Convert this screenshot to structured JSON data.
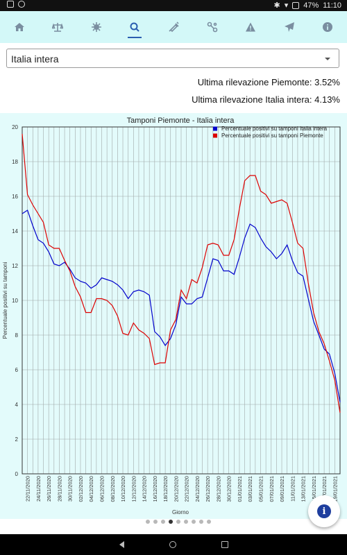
{
  "status_bar": {
    "battery": "47%",
    "time": "11:10"
  },
  "toolbar": {
    "accent": "#2a5db0",
    "icon_color": "#7a8ea0",
    "items": [
      {
        "icon": "home-icon"
      },
      {
        "icon": "balance-scale-icon"
      },
      {
        "icon": "virus-icon"
      },
      {
        "icon": "search-icon",
        "active": true
      },
      {
        "icon": "syringe-icon"
      },
      {
        "icon": "share-icon"
      },
      {
        "icon": "warning-icon"
      },
      {
        "icon": "airplane-icon"
      },
      {
        "icon": "info-icon"
      }
    ]
  },
  "selector": {
    "value": "Italia intera"
  },
  "stats": {
    "piemonte": "Ultima rilevazione Piemonte: 3.52%",
    "italia": "Ultima rilevazione Italia intera: 4.13%"
  },
  "pager": {
    "count": 9,
    "active_index": 3
  },
  "chart_data": {
    "type": "line",
    "title": "Tamponi Piemonte - Italia intera",
    "xlabel": "Giorno",
    "ylabel": "Percentuale positivi su tamponi",
    "ylim": [
      0,
      20
    ],
    "yticks": [
      0,
      2,
      4,
      6,
      8,
      10,
      12,
      14,
      16,
      18,
      20
    ],
    "grid": true,
    "legend_position": "top-right",
    "x_tick_labels": [
      "22/11/2020",
      "24/11/2020",
      "26/11/2020",
      "28/11/2020",
      "30/11/2020",
      "02/12/2020",
      "04/12/2020",
      "06/12/2020",
      "08/12/2020",
      "10/12/2020",
      "12/12/2020",
      "14/12/2020",
      "16/12/2020",
      "18/12/2020",
      "20/12/2020",
      "22/12/2020",
      "24/12/2020",
      "26/12/2020",
      "28/12/2020",
      "30/12/2020",
      "01/01/2021",
      "03/01/2021",
      "05/01/2021",
      "07/01/2021",
      "09/01/2021",
      "11/01/2021",
      "13/01/2021",
      "15/01/2021",
      "17/01/2021",
      "19/01/2021"
    ],
    "x": [
      "21/11/2020",
      "22/11/2020",
      "23/11/2020",
      "24/11/2020",
      "25/11/2020",
      "26/11/2020",
      "27/11/2020",
      "28/11/2020",
      "29/11/2020",
      "30/11/2020",
      "01/12/2020",
      "02/12/2020",
      "03/12/2020",
      "04/12/2020",
      "05/12/2020",
      "06/12/2020",
      "07/12/2020",
      "08/12/2020",
      "09/12/2020",
      "10/12/2020",
      "11/12/2020",
      "12/12/2020",
      "13/12/2020",
      "14/12/2020",
      "15/12/2020",
      "16/12/2020",
      "17/12/2020",
      "18/12/2020",
      "19/12/2020",
      "20/12/2020",
      "21/12/2020",
      "22/12/2020",
      "23/12/2020",
      "24/12/2020",
      "25/12/2020",
      "26/12/2020",
      "27/12/2020",
      "28/12/2020",
      "29/12/2020",
      "30/12/2020",
      "31/12/2020",
      "01/01/2021",
      "02/01/2021",
      "03/01/2021",
      "04/01/2021",
      "05/01/2021",
      "06/01/2021",
      "07/01/2021",
      "08/01/2021",
      "09/01/2021",
      "10/01/2021",
      "11/01/2021",
      "12/01/2021",
      "13/01/2021",
      "14/01/2021",
      "15/01/2021",
      "16/01/2021",
      "17/01/2021",
      "18/01/2021",
      "19/01/2021",
      "20/01/2021"
    ],
    "series": [
      {
        "name": "Percentuale positivi su tamponi Italia intera",
        "color": "#0000cc",
        "values": [
          15.0,
          15.2,
          14.3,
          13.5,
          13.3,
          12.8,
          12.1,
          12.0,
          12.2,
          11.8,
          11.3,
          11.1,
          11.0,
          10.7,
          10.9,
          11.3,
          11.2,
          11.1,
          10.9,
          10.6,
          10.1,
          10.5,
          10.6,
          10.5,
          10.3,
          8.2,
          7.9,
          7.4,
          7.8,
          8.6,
          10.2,
          9.8,
          9.8,
          10.1,
          10.2,
          11.3,
          12.4,
          12.3,
          11.7,
          11.7,
          11.5,
          12.5,
          13.6,
          14.4,
          14.2,
          13.6,
          13.1,
          12.8,
          12.4,
          12.7,
          13.2,
          12.3,
          11.6,
          11.4,
          10.1,
          8.8,
          8.0,
          7.2,
          6.9,
          5.8,
          4.13
        ]
      },
      {
        "name": "Percentuale positivi su tamponi Piemonte",
        "color": "#dd0000",
        "values": [
          19.6,
          16.1,
          15.5,
          15.0,
          14.5,
          13.2,
          13.0,
          13.0,
          12.3,
          11.7,
          10.8,
          10.2,
          9.3,
          9.3,
          10.1,
          10.1,
          10.0,
          9.7,
          9.1,
          8.1,
          8.0,
          8.7,
          8.3,
          8.1,
          7.8,
          6.3,
          6.4,
          6.4,
          8.3,
          8.9,
          10.6,
          10.1,
          11.2,
          11.0,
          11.9,
          13.2,
          13.3,
          13.2,
          12.6,
          12.6,
          13.5,
          15.3,
          16.9,
          17.2,
          17.2,
          16.3,
          16.1,
          15.6,
          15.7,
          15.8,
          15.6,
          14.5,
          13.3,
          13.0,
          11.0,
          9.3,
          8.2,
          7.5,
          6.5,
          5.4,
          3.52
        ]
      }
    ]
  }
}
